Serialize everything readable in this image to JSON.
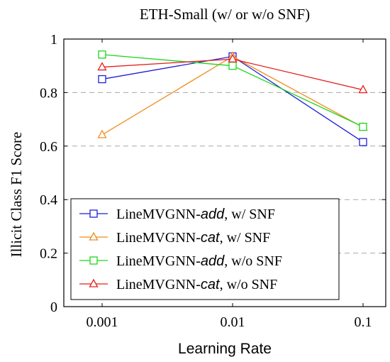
{
  "chart_data": {
    "type": "line",
    "title": "ETH-Small (w/ or w/o SNF)",
    "xlabel": "Learning Rate",
    "ylabel": "Illicit Class F1 Score",
    "x_scale": "log",
    "x": [
      0.001,
      0.01,
      0.1
    ],
    "x_tick_labels": [
      "0.001",
      "0.01",
      "0.1"
    ],
    "ylim": [
      0,
      1
    ],
    "y_ticks": [
      0,
      0.2,
      0.4,
      0.6,
      0.8,
      1
    ],
    "y_tick_labels": [
      "0",
      "0.2",
      "0.4",
      "0.6",
      "0.8",
      "1"
    ],
    "grid": "horizontal dashed",
    "legend_position": "bottom-left",
    "series": [
      {
        "name": "LineMVGNN-add, w/ SNF",
        "name_parts": [
          "LineMVGNN-",
          "add",
          ", w/ SNF"
        ],
        "color": "#1f1fd6",
        "marker": "square",
        "values": [
          0.85,
          0.935,
          0.615
        ]
      },
      {
        "name": "LineMVGNN-cat, w/ SNF",
        "name_parts": [
          "LineMVGNN-",
          "cat",
          ", w/ SNF"
        ],
        "color": "#f08c1e",
        "marker": "triangle",
        "values": [
          0.642,
          0.935,
          0.67
        ]
      },
      {
        "name": "LineMVGNN-add, w/o SNF",
        "name_parts": [
          "LineMVGNN-",
          "add",
          ", w/o SNF"
        ],
        "color": "#1ed61e",
        "marker": "square",
        "values": [
          0.942,
          0.9,
          0.672
        ]
      },
      {
        "name": "LineMVGNN-cat, w/o SNF",
        "name_parts": [
          "LineMVGNN-",
          "cat",
          ", w/o SNF"
        ],
        "color": "#e61e1e",
        "marker": "triangle",
        "values": [
          0.895,
          0.925,
          0.81
        ]
      }
    ]
  }
}
